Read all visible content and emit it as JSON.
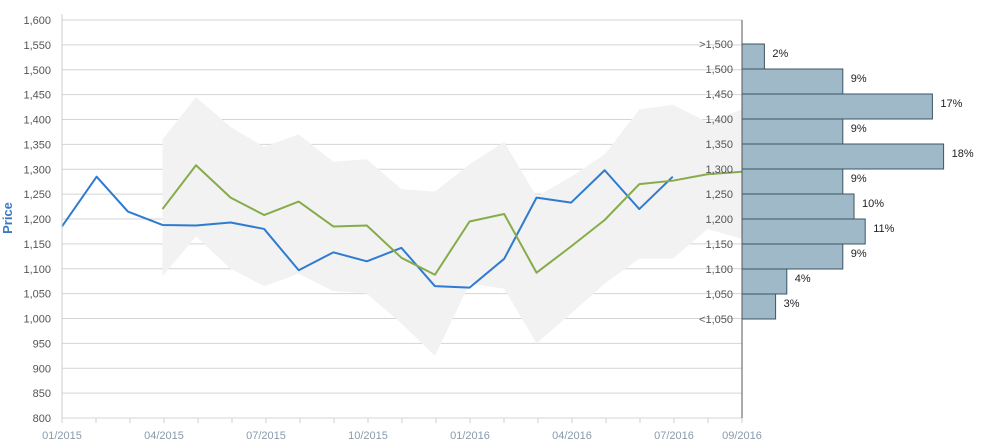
{
  "chart_data": {
    "type": "line",
    "title": "",
    "ylabel": "Price",
    "xlabel": "",
    "ylim": [
      800,
      1600
    ],
    "y_ticks": [
      "800",
      "850",
      "900",
      "950",
      "1,000",
      "1,050",
      "1,100",
      "1,150",
      "1,200",
      "1,250",
      "1,300",
      "1,350",
      "1,400",
      "1,450",
      "1,500",
      "1,550",
      "1,600"
    ],
    "x_tick_labels": [
      "01/2015",
      "04/2015",
      "07/2015",
      "10/2015",
      "01/2016",
      "04/2016",
      "07/2016",
      "09/2016"
    ],
    "grid": true,
    "series": [
      {
        "role": "actual",
        "color": "#2f7bd0",
        "x": [
          "2015-01",
          "2015-02",
          "2015-03",
          "2015-04",
          "2015-05",
          "2015-06",
          "2015-07",
          "2015-08",
          "2015-09",
          "2015-10",
          "2015-11",
          "2015-12",
          "2016-01",
          "2016-02",
          "2016-03",
          "2016-04",
          "2016-05",
          "2016-06",
          "2016-07"
        ],
        "values": [
          1185,
          1285,
          1215,
          1188,
          1187,
          1193,
          1180,
          1097,
          1133,
          1115,
          1142,
          1065,
          1062,
          1120,
          1243,
          1233,
          1298,
          1220,
          1285
        ]
      },
      {
        "role": "forecast",
        "color": "#86ac4a",
        "x": [
          "2015-04",
          "2015-05",
          "2015-06",
          "2015-07",
          "2015-08",
          "2015-09",
          "2015-10",
          "2015-11",
          "2015-12",
          "2016-01",
          "2016-02",
          "2016-03",
          "2016-04",
          "2016-05",
          "2016-06",
          "2016-07",
          "2016-08",
          "2016-09"
        ],
        "values": [
          1220,
          1308,
          1243,
          1208,
          1235,
          1185,
          1187,
          1122,
          1088,
          1195,
          1210,
          1092,
          1145,
          1198,
          1270,
          1277,
          1290,
          1295
        ]
      }
    ],
    "range_band": {
      "color": "#f2f2f2",
      "x": [
        "2015-04",
        "2015-05",
        "2015-06",
        "2015-07",
        "2015-08",
        "2015-09",
        "2015-10",
        "2015-11",
        "2015-12",
        "2016-01",
        "2016-02",
        "2016-03",
        "2016-04",
        "2016-05",
        "2016-06",
        "2016-07",
        "2016-08",
        "2016-09"
      ],
      "upper": [
        1360,
        1445,
        1385,
        1345,
        1370,
        1315,
        1320,
        1260,
        1255,
        1310,
        1355,
        1245,
        1285,
        1330,
        1420,
        1430,
        1395,
        1420
      ],
      "lower": [
        1085,
        1165,
        1100,
        1065,
        1090,
        1055,
        1050,
        990,
        925,
        1070,
        1060,
        950,
        1010,
        1070,
        1120,
        1120,
        1180,
        1160
      ]
    },
    "distribution": {
      "color": "#a0b9c8",
      "buckets": [
        {
          "label": ">1,500",
          "pct": "2%",
          "value": 2
        },
        {
          "label": "1,500",
          "pct": "9%",
          "value": 9
        },
        {
          "label": "1,450",
          "pct": "17%",
          "value": 17
        },
        {
          "label": "1,400",
          "pct": "9%",
          "value": 9
        },
        {
          "label": "1,350",
          "pct": "18%",
          "value": 18
        },
        {
          "label": "1,300",
          "pct": "9%",
          "value": 9
        },
        {
          "label": "1,250",
          "pct": "10%",
          "value": 10
        },
        {
          "label": "1,200",
          "pct": "11%",
          "value": 11
        },
        {
          "label": "1,150",
          "pct": "9%",
          "value": 9
        },
        {
          "label": "1,100",
          "pct": "4%",
          "value": 4
        },
        {
          "label": "1,050",
          "pct": "3%",
          "value": 3
        },
        {
          "label": "<1,050",
          "pct": "",
          "value": 0
        }
      ]
    }
  }
}
